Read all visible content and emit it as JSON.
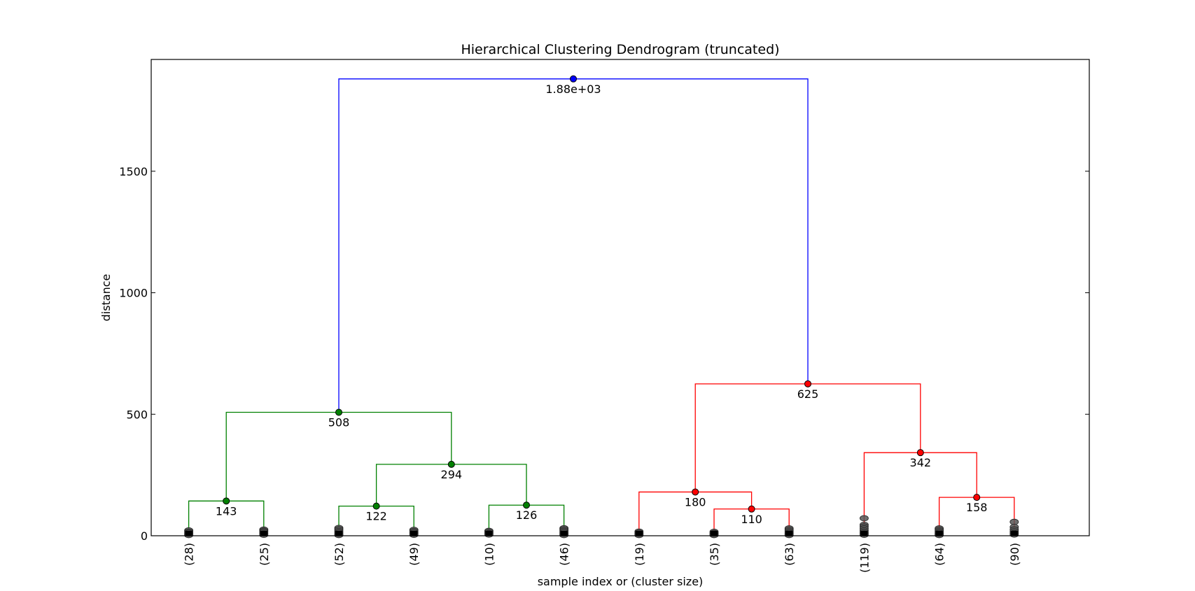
{
  "chart_data": {
    "type": "dendrogram",
    "title": "Hierarchical Clustering Dendrogram (truncated)",
    "xlabel": "sample index or (cluster size)",
    "ylabel": "distance",
    "ylim": [
      0,
      1960
    ],
    "yticks": [
      0,
      500,
      1000,
      1500
    ],
    "ytick_labels": [
      "0",
      "500",
      "1000",
      "1500"
    ],
    "leaf_labels": [
      "(28)",
      "(25)",
      "(52)",
      "(49)",
      "(10)",
      "(46)",
      "(19)",
      "(35)",
      "(63)",
      "(119)",
      "(64)",
      "(90)"
    ],
    "links": [
      {
        "left": "L0",
        "right": "L1",
        "height": 143,
        "label": "143",
        "color": "#008000"
      },
      {
        "left": "L2",
        "right": "L3",
        "height": 122,
        "label": "122",
        "color": "#008000"
      },
      {
        "left": "L4",
        "right": "L5",
        "height": 126,
        "label": "126",
        "color": "#008000"
      },
      {
        "left": "N1",
        "right": "N2",
        "height": 294,
        "label": "294",
        "color": "#008000"
      },
      {
        "left": "N0",
        "right": "N3",
        "height": 508,
        "label": "508",
        "color": "#008000"
      },
      {
        "left": "L7",
        "right": "L8",
        "height": 110,
        "label": "110",
        "color": "#ff0000"
      },
      {
        "left": "L6",
        "right": "N5",
        "height": 180,
        "label": "180",
        "color": "#ff0000"
      },
      {
        "left": "L10",
        "right": "L11",
        "height": 158,
        "label": "158",
        "color": "#ff0000"
      },
      {
        "left": "L9",
        "right": "N7",
        "height": 342,
        "label": "342",
        "color": "#ff0000"
      },
      {
        "left": "N6",
        "right": "N8",
        "height": 625,
        "label": "625",
        "color": "#ff0000"
      },
      {
        "left": "N4",
        "right": "N9",
        "height": 1880,
        "label": "1.88e+03",
        "color": "#0000ff"
      }
    ],
    "leaf_marker_heights": [
      [
        22,
        17,
        12,
        7,
        3
      ],
      [
        25,
        20,
        15,
        9,
        4
      ],
      [
        32,
        26,
        19,
        13,
        7,
        3
      ],
      [
        24,
        19,
        13,
        8,
        4
      ],
      [
        20,
        15,
        10,
        5
      ],
      [
        31,
        26,
        20,
        14,
        8,
        3
      ],
      [
        17,
        12,
        7,
        3
      ],
      [
        16,
        11,
        6,
        3
      ],
      [
        30,
        24,
        18,
        12,
        7,
        3
      ],
      [
        72,
        45,
        38,
        30,
        22,
        15,
        9,
        4
      ],
      [
        30,
        24,
        18,
        12,
        7,
        3
      ],
      [
        57,
        36,
        26,
        18,
        11,
        5
      ]
    ],
    "leaf_marker_color": "#555555",
    "grid": false
  }
}
